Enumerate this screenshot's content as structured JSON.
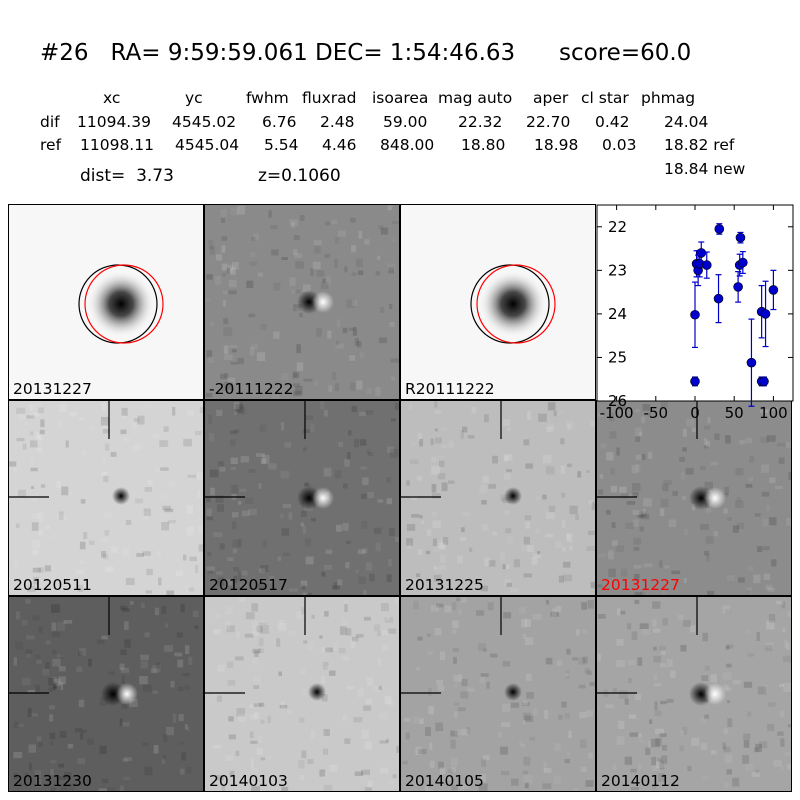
{
  "header": {
    "title": "#26   RA= 9:59:59.061 DEC= 1:54:46.63      score=60.0",
    "columns": [
      "xc",
      "yc",
      "fwhm",
      "fluxrad",
      "isoarea",
      "mag auto",
      "aper",
      "cl star",
      "phmag"
    ],
    "rows": [
      {
        "label": "dif",
        "values": [
          "11094.39",
          "4545.02",
          "6.76",
          "2.48",
          "59.00",
          "22.32",
          "22.70",
          "0.42",
          "24.04"
        ]
      },
      {
        "label": "ref",
        "values": [
          "11098.11",
          "4545.04",
          "5.54",
          "4.46",
          "848.00",
          "18.80",
          "18.98",
          "0.03",
          "18.82 ref"
        ]
      }
    ],
    "dist": "dist=  3.73",
    "z": "z=0.1060",
    "phmag_new": "18.84 new"
  },
  "stamps": [
    {
      "label": "20131227",
      "bg": "#f7f7f7",
      "style": "blob",
      "circles": true
    },
    {
      "label": "-20111222",
      "bg": "#8a8a8a",
      "style": "dipole",
      "circles": false
    },
    {
      "label": "R20111222",
      "bg": "#f7f7f7",
      "style": "blob",
      "circles": true
    },
    {
      "label": "20120511",
      "bg": "#d4d4d4",
      "style": "dot",
      "label_color": "#000000"
    },
    {
      "label": "20120517",
      "bg": "#707070",
      "style": "dipole_dark"
    },
    {
      "label": "20131225",
      "bg": "#bdbdbd",
      "style": "dot"
    },
    {
      "label": "20131227",
      "bg": "#8c8c8c",
      "style": "dipole",
      "label_color": "#ff0000"
    },
    {
      "label": "20131230",
      "bg": "#5e5e5e",
      "style": "dipole"
    },
    {
      "label": "20140103",
      "bg": "#c9c9c9",
      "style": "dot"
    },
    {
      "label": "20140105",
      "bg": "#a3a3a3",
      "style": "dot"
    },
    {
      "label": "20140112",
      "bg": "#a5a5a5",
      "style": "dipole"
    }
  ],
  "chart_data": {
    "type": "scatter",
    "title": "",
    "xlabel": "",
    "ylabel": "",
    "xlim": [
      -125,
      125
    ],
    "ylim": [
      26,
      21.5
    ],
    "y_inverted": true,
    "xticks": [
      "-100",
      "-50",
      "0",
      "50",
      "100"
    ],
    "xtick_values": [
      -100,
      -50,
      0,
      50,
      100
    ],
    "yticks": [
      "22",
      "23",
      "24",
      "25",
      "26"
    ],
    "ytick_values": [
      22,
      23,
      24,
      25,
      26
    ],
    "marker_color": "#0000cc",
    "series": [
      {
        "points": [
          {
            "x": 0,
            "y": 25.55,
            "err": 0.1
          },
          {
            "x": 0,
            "y": 24.02,
            "err": 0.75
          },
          {
            "x": 2,
            "y": 22.85,
            "err": 0.3
          },
          {
            "x": 4,
            "y": 23.0,
            "err": 0.35
          },
          {
            "x": 6,
            "y": 22.85,
            "err": 0.3
          },
          {
            "x": 8,
            "y": 22.6,
            "err": 0.25
          },
          {
            "x": 15,
            "y": 22.88,
            "err": 0.3
          },
          {
            "x": 30,
            "y": 23.65,
            "err": 0.55
          },
          {
            "x": 31,
            "y": 22.05,
            "err": 0.12
          },
          {
            "x": 55,
            "y": 23.38,
            "err": 0.35
          },
          {
            "x": 57,
            "y": 22.88,
            "err": 0.25
          },
          {
            "x": 58,
            "y": 22.25,
            "err": 0.12
          },
          {
            "x": 61,
            "y": 22.82,
            "err": 0.25
          },
          {
            "x": 72,
            "y": 25.12,
            "err": 1.0
          },
          {
            "x": 85,
            "y": 25.55,
            "err": 0.1
          },
          {
            "x": 85,
            "y": 23.95,
            "err": 0.6
          },
          {
            "x": 88,
            "y": 25.55,
            "err": 0.1
          },
          {
            "x": 90,
            "y": 24.0,
            "err": 0.75
          },
          {
            "x": 100,
            "y": 23.45,
            "err": 0.45
          }
        ]
      }
    ]
  }
}
